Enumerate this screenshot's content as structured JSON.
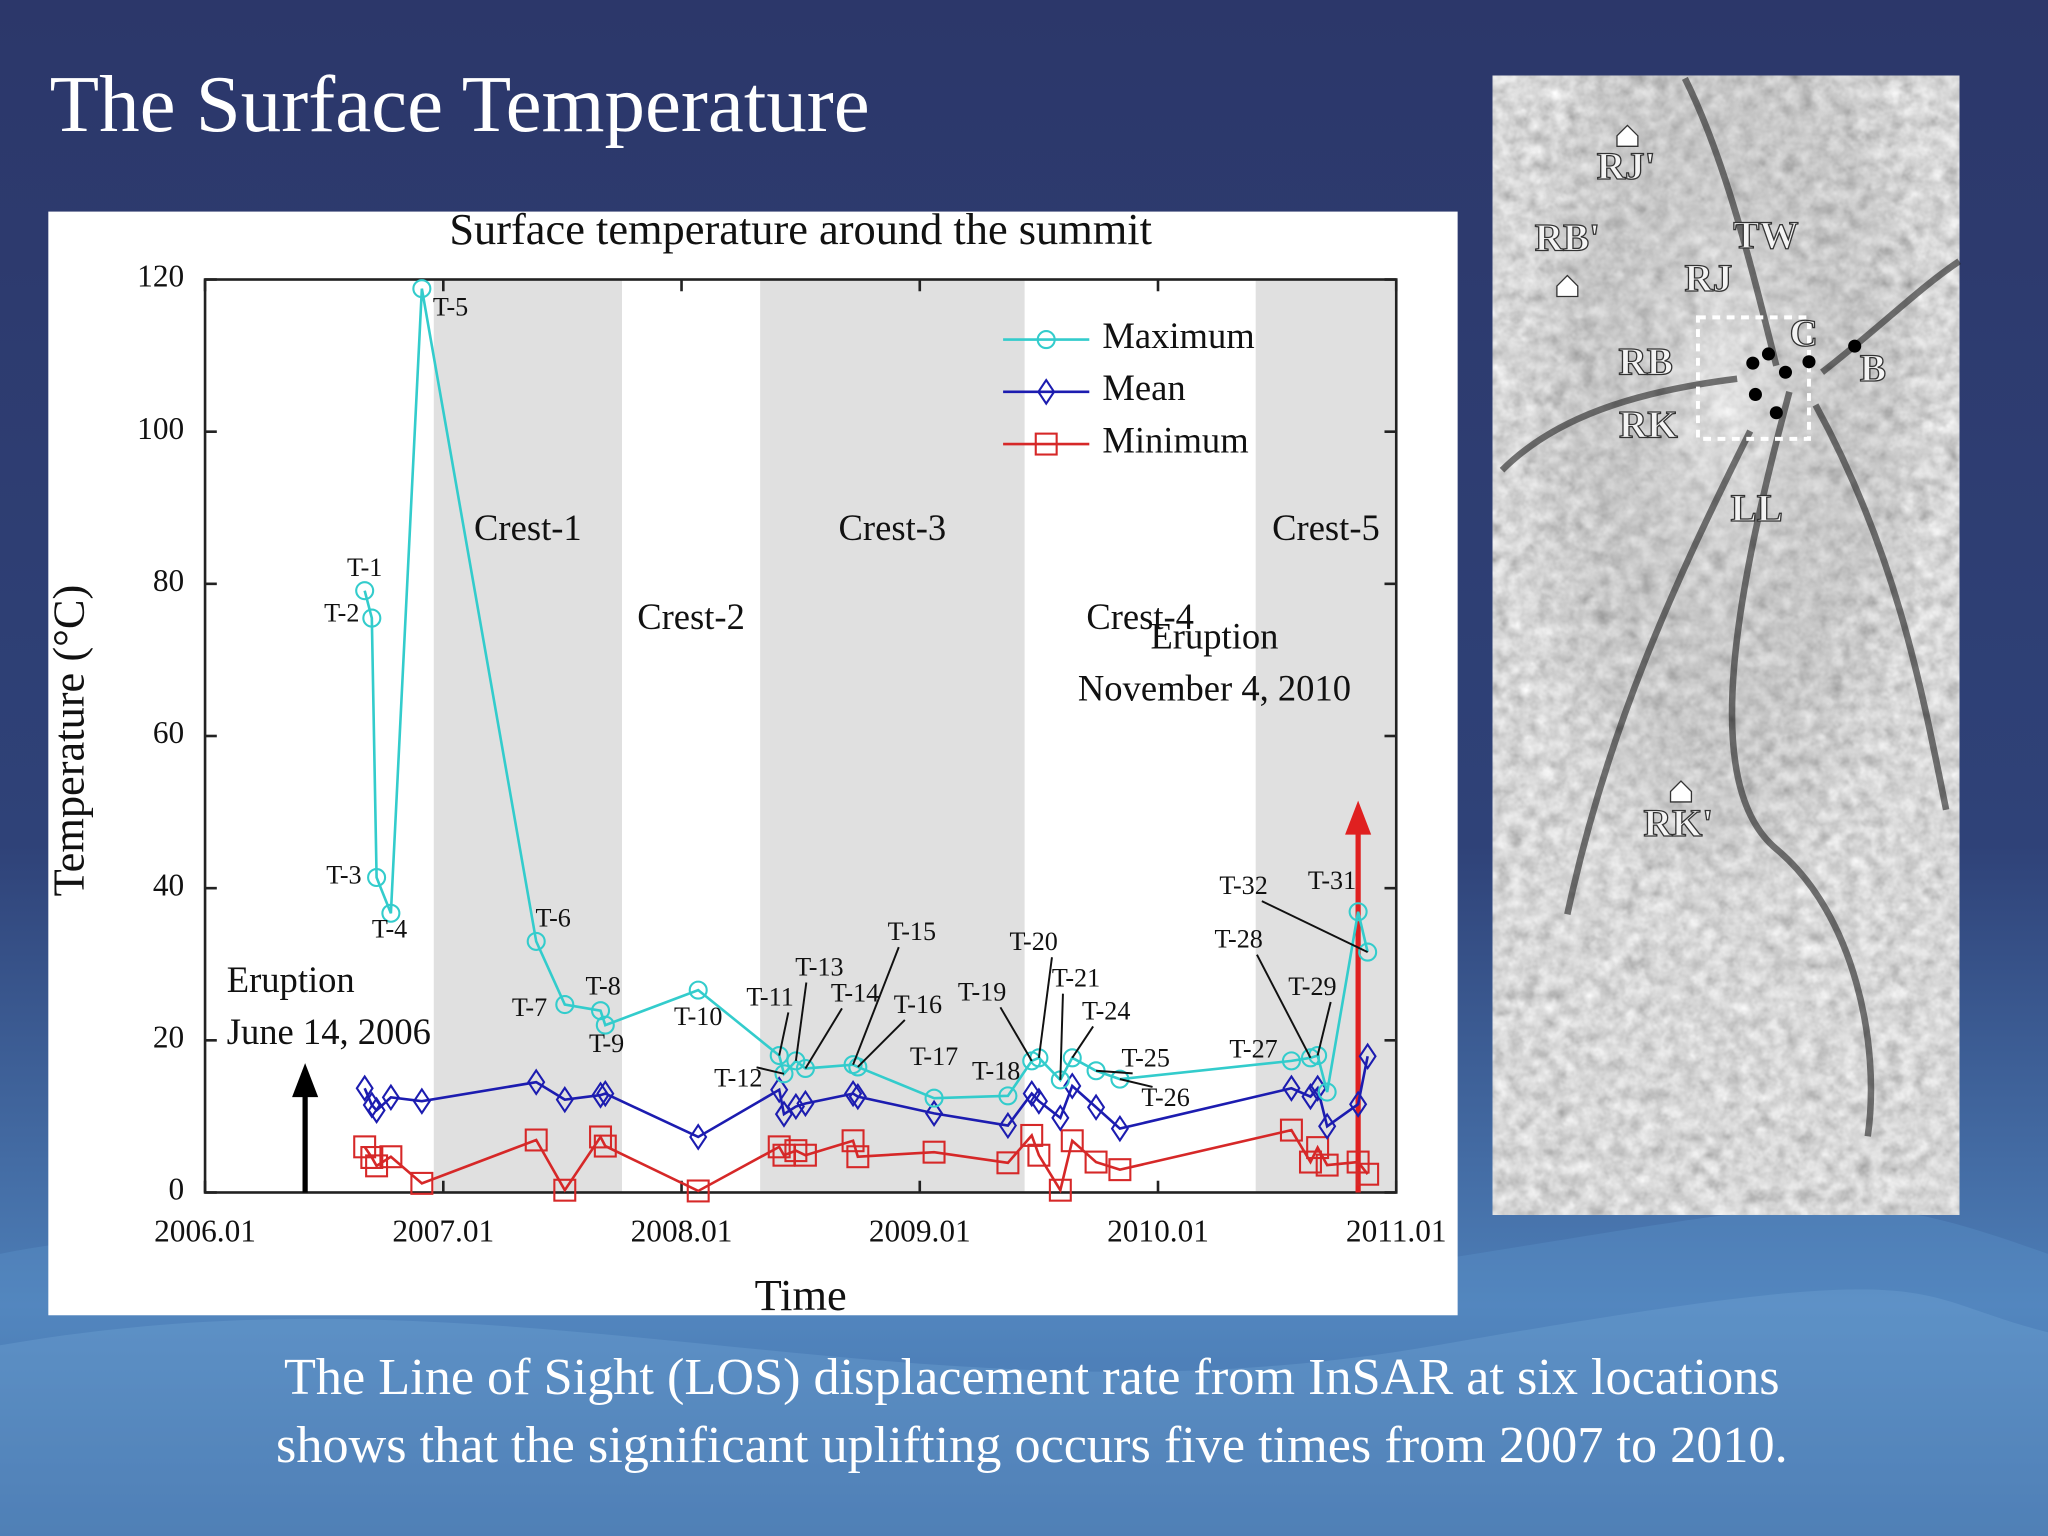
{
  "slide_title": "The Surface Temperature",
  "caption": [
    "The Line of Sight (LOS) displacement rate from InSAR at six locations",
    "shows that the significant uplifting occurs five times from 2007 to 2010."
  ],
  "chart_data": {
    "type": "line",
    "title": "Surface temperature around the summit",
    "x_label": "Time",
    "y_label": "Temperature (°C)",
    "x": [
      2006.67,
      2006.7,
      2006.72,
      2006.78,
      2006.91,
      2007.39,
      2007.51,
      2007.66,
      2007.68,
      2008.07,
      2008.41,
      2008.43,
      2008.48,
      2008.52,
      2008.72,
      2008.74,
      2009.06,
      2009.37,
      2009.47,
      2009.5,
      2009.59,
      2009.64,
      2009.74,
      2009.84,
      2010.56,
      2010.64,
      2010.67,
      2010.71,
      2010.84,
      2010.88
    ],
    "point_labels": [
      "T-1",
      "T-2",
      "T-3",
      "T-4",
      "T-5",
      "T-6",
      "T-7",
      "T-8",
      "T-9",
      "T-10",
      "T-11",
      "T-12",
      "T-13",
      "T-14",
      "T-15",
      "T-16",
      "T-17",
      "T-18",
      "T-19",
      "T-20",
      "T-21",
      "T-24",
      "T-25",
      "T-26",
      "T-27",
      "T-28",
      "T-29",
      null,
      "T-31",
      "T-32"
    ],
    "series": [
      {
        "name": "Maximum",
        "color": "#33cccc",
        "marker": "circle",
        "values": [
          79.1,
          75.5,
          41.4,
          36.7,
          118.8,
          33.0,
          24.7,
          23.9,
          22.0,
          26.6,
          18.0,
          15.6,
          17.3,
          16.3,
          16.8,
          16.5,
          12.4,
          12.7,
          17.3,
          17.7,
          14.8,
          17.7,
          16.0,
          14.9,
          17.3,
          17.7,
          18.0,
          13.2,
          36.9,
          31.6
        ]
      },
      {
        "name": "Mean",
        "color": "#1c1cb0",
        "marker": "diamond",
        "values": [
          13.7,
          11.5,
          10.8,
          12.5,
          12.0,
          14.5,
          12.2,
          12.8,
          13.0,
          7.3,
          13.5,
          10.3,
          11.3,
          11.7,
          13.0,
          12.6,
          10.4,
          8.8,
          13.0,
          12.0,
          9.8,
          14.0,
          11.2,
          8.4,
          13.7,
          12.6,
          13.7,
          8.7,
          11.6,
          17.9
        ]
      },
      {
        "name": "Minimum",
        "color": "#d62828",
        "marker": "square",
        "values": [
          6.0,
          4.6,
          3.5,
          4.7,
          1.2,
          6.9,
          0.3,
          7.3,
          6.1,
          0.2,
          6.0,
          4.9,
          5.5,
          4.9,
          6.8,
          4.7,
          5.3,
          3.9,
          7.5,
          4.9,
          0.3,
          6.8,
          4.0,
          3.0,
          8.2,
          4.0,
          5.9,
          3.6,
          4.0,
          2.4
        ]
      }
    ],
    "xlim": [
      2006,
      2011
    ],
    "xticks": [
      {
        "value": 2006,
        "label": "2006.01"
      },
      {
        "value": 2007,
        "label": "2007.01"
      },
      {
        "value": 2008,
        "label": "2008.01"
      },
      {
        "value": 2009,
        "label": "2009.01"
      },
      {
        "value": 2010,
        "label": "2010.01"
      },
      {
        "value": 2011,
        "label": "2011.01"
      }
    ],
    "ylim": [
      0,
      120
    ],
    "yticks": [
      0,
      20,
      40,
      60,
      80,
      100,
      120
    ],
    "legend": "upper right",
    "band_color": "#e0e0e0",
    "bands": [
      {
        "label": "Crest-1",
        "range": [
          2006.96,
          2007.75
        ],
        "shaded": true
      },
      {
        "label": "Crest-2",
        "range": [
          2007.75,
          2008.33
        ],
        "shaded": false
      },
      {
        "label": "Crest-3",
        "range": [
          2008.33,
          2009.44
        ],
        "shaded": true
      },
      {
        "label": "Crest-4",
        "range": [
          2009.44,
          2010.41
        ],
        "shaded": false
      },
      {
        "label": "Crest-5",
        "range": [
          2010.41,
          2011.0
        ],
        "shaded": true
      }
    ],
    "annotations": [
      {
        "text": [
          "Eruption",
          "June 14, 2006"
        ],
        "x": 2006.42,
        "y": 17,
        "color": "#000000"
      },
      {
        "text": [
          "Eruption",
          "November 4, 2010"
        ],
        "x": 2010.84,
        "y": 51.5,
        "color": "#e02020"
      }
    ]
  },
  "map": {
    "labels": [
      "RJ'",
      "RB'",
      "TW",
      "RJ",
      "C",
      "RB",
      "B",
      "RK",
      "LL",
      "RK'"
    ]
  }
}
